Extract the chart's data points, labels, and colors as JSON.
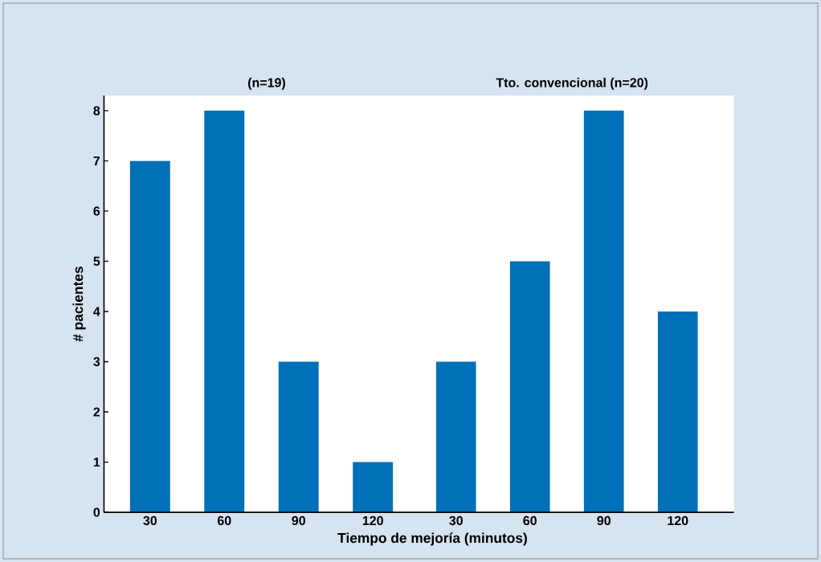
{
  "chart_data": [
    {
      "type": "bar",
      "title": "(n=19)",
      "categories": [
        "30",
        "60",
        "90",
        "120"
      ],
      "values": [
        7,
        8,
        3,
        1
      ],
      "color": "#0070b8",
      "xlabel": "Tiempo de mejoría (minutos)",
      "ylabel": "# pacientes",
      "ylim": [
        0,
        8.3
      ],
      "yticks": [
        0,
        1,
        2,
        3,
        4,
        5,
        6,
        7,
        8
      ]
    },
    {
      "type": "bar",
      "title": "Tto. convencional (n=20)",
      "categories": [
        "30",
        "60",
        "90",
        "120"
      ],
      "values": [
        3,
        5,
        8,
        4
      ],
      "color": "#0070b8",
      "ylim": [
        0,
        8.3
      ],
      "yticks": [
        0,
        1,
        2,
        3,
        4,
        5,
        6,
        7,
        8
      ],
      "tick_labels": "x"
    }
  ]
}
